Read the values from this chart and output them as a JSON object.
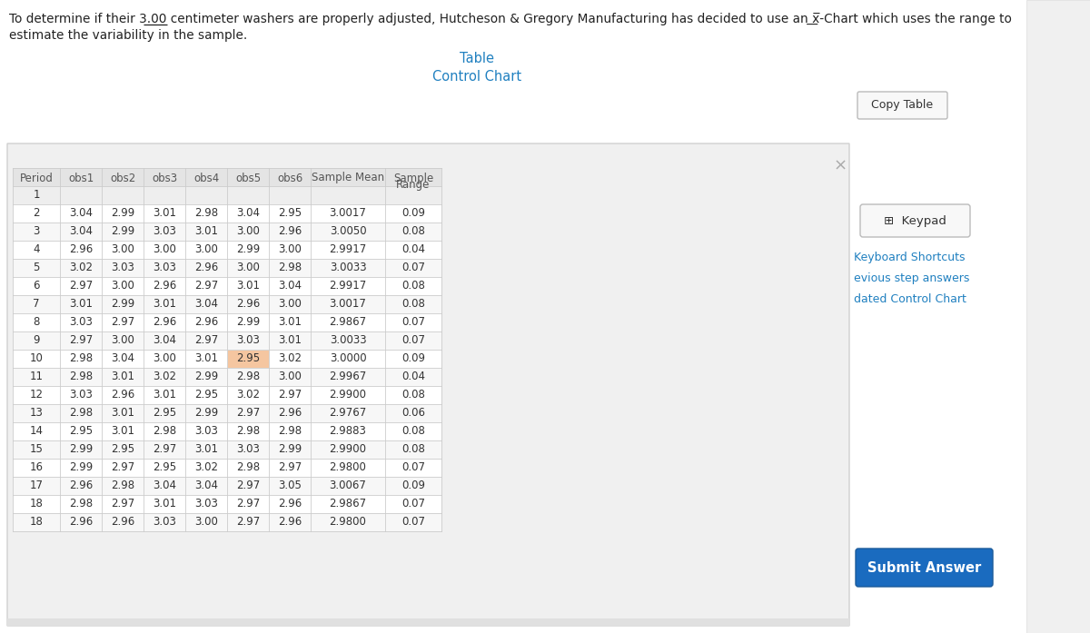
{
  "title_prefix": "To determine if their ",
  "title_bold": "3.00",
  "title_suffix": " centimeter washers are properly adjusted, Hutcheson & Gregory Manufacturing has decided to use an ͟x̅-Chart which uses the range to",
  "title_line2": "estimate the variability in the sample.",
  "tab_table": "Table",
  "tab_control": "Control Chart",
  "copy_btn": "Copy Table",
  "submit_btn": "Submit Answer",
  "right_links": [
    "Keyboard Shortcuts",
    "evious step answers",
    "dated Control Chart"
  ],
  "col_headers": [
    "Period",
    "obs1",
    "obs2",
    "obs3",
    "obs4",
    "obs5",
    "obs6",
    "Sample Mean",
    "Sample\nRange"
  ],
  "rows": [
    {
      "period": "1",
      "obs": [
        null,
        null,
        null,
        null,
        null,
        null
      ],
      "mean": null,
      "range": null
    },
    {
      "period": "2",
      "obs": [
        3.04,
        2.99,
        3.01,
        2.98,
        3.04,
        2.95
      ],
      "mean": "3.0017",
      "range": "0.09"
    },
    {
      "period": "3",
      "obs": [
        3.04,
        2.99,
        3.03,
        3.01,
        3.0,
        2.96
      ],
      "mean": "3.0050",
      "range": "0.08"
    },
    {
      "period": "4",
      "obs": [
        2.96,
        3.0,
        3.0,
        3.0,
        2.99,
        3.0
      ],
      "mean": "2.9917",
      "range": "0.04"
    },
    {
      "period": "5",
      "obs": [
        3.02,
        3.03,
        3.03,
        2.96,
        3.0,
        2.98
      ],
      "mean": "3.0033",
      "range": "0.07"
    },
    {
      "period": "6",
      "obs": [
        2.97,
        3.0,
        2.96,
        2.97,
        3.01,
        3.04
      ],
      "mean": "2.9917",
      "range": "0.08"
    },
    {
      "period": "7",
      "obs": [
        3.01,
        2.99,
        3.01,
        3.04,
        2.96,
        3.0
      ],
      "mean": "3.0017",
      "range": "0.08"
    },
    {
      "period": "8",
      "obs": [
        3.03,
        2.97,
        2.96,
        2.96,
        2.99,
        3.01
      ],
      "mean": "2.9867",
      "range": "0.07"
    },
    {
      "period": "9",
      "obs": [
        2.97,
        3.0,
        3.04,
        2.97,
        3.03,
        3.01
      ],
      "mean": "3.0033",
      "range": "0.07"
    },
    {
      "period": "10",
      "obs": [
        2.98,
        3.04,
        3.0,
        3.01,
        2.95,
        3.02
      ],
      "mean": "3.0000",
      "range": "0.09",
      "highlight_col": 4
    },
    {
      "period": "11",
      "obs": [
        2.98,
        3.01,
        3.02,
        2.99,
        2.98,
        3.0
      ],
      "mean": "2.9967",
      "range": "0.04"
    },
    {
      "period": "12",
      "obs": [
        3.03,
        2.96,
        3.01,
        2.95,
        3.02,
        2.97
      ],
      "mean": "2.9900",
      "range": "0.08"
    },
    {
      "period": "13",
      "obs": [
        2.98,
        3.01,
        2.95,
        2.99,
        2.97,
        2.96
      ],
      "mean": "2.9767",
      "range": "0.06"
    },
    {
      "period": "14",
      "obs": [
        2.95,
        3.01,
        2.98,
        3.03,
        2.98,
        2.98
      ],
      "mean": "2.9883",
      "range": "0.08"
    },
    {
      "period": "15",
      "obs": [
        2.99,
        2.95,
        2.97,
        3.01,
        3.03,
        2.99
      ],
      "mean": "2.9900",
      "range": "0.08"
    },
    {
      "period": "16",
      "obs": [
        2.99,
        2.97,
        2.95,
        3.02,
        2.98,
        2.97
      ],
      "mean": "2.9800",
      "range": "0.07"
    },
    {
      "period": "17",
      "obs": [
        2.96,
        2.98,
        3.04,
        3.04,
        2.97,
        3.05
      ],
      "mean": "3.0067",
      "range": "0.09"
    },
    {
      "period": "18",
      "obs": [
        2.98,
        2.97,
        3.01,
        3.03,
        2.97,
        2.96
      ],
      "mean": "2.9867",
      "range": "0.07"
    },
    {
      "period": "18",
      "obs": [
        2.96,
        2.96,
        3.03,
        3.0,
        2.97,
        2.96
      ],
      "mean": "2.9800",
      "range": "0.07"
    }
  ],
  "bg_color": "#ffffff",
  "header_bg": "#e4e4e4",
  "row1_bg": "#eeeeee",
  "row_bg_alt": "#f7f7f7",
  "row_bg_norm": "#ffffff",
  "border_color": "#cccccc",
  "highlight_color": "#f5c6a0",
  "tab_color": "#2080c0",
  "header_text_color": "#555555",
  "panel_bg": "#f0f0f0",
  "panel_border": "#d0d0d0",
  "close_color": "#aaaaaa",
  "text_color": "#333333",
  "submit_bg": "#1a6bbf",
  "submit_border": "#1a5a9a",
  "keypad_bg": "#f8f8f8",
  "keypad_border": "#bbbbbb"
}
